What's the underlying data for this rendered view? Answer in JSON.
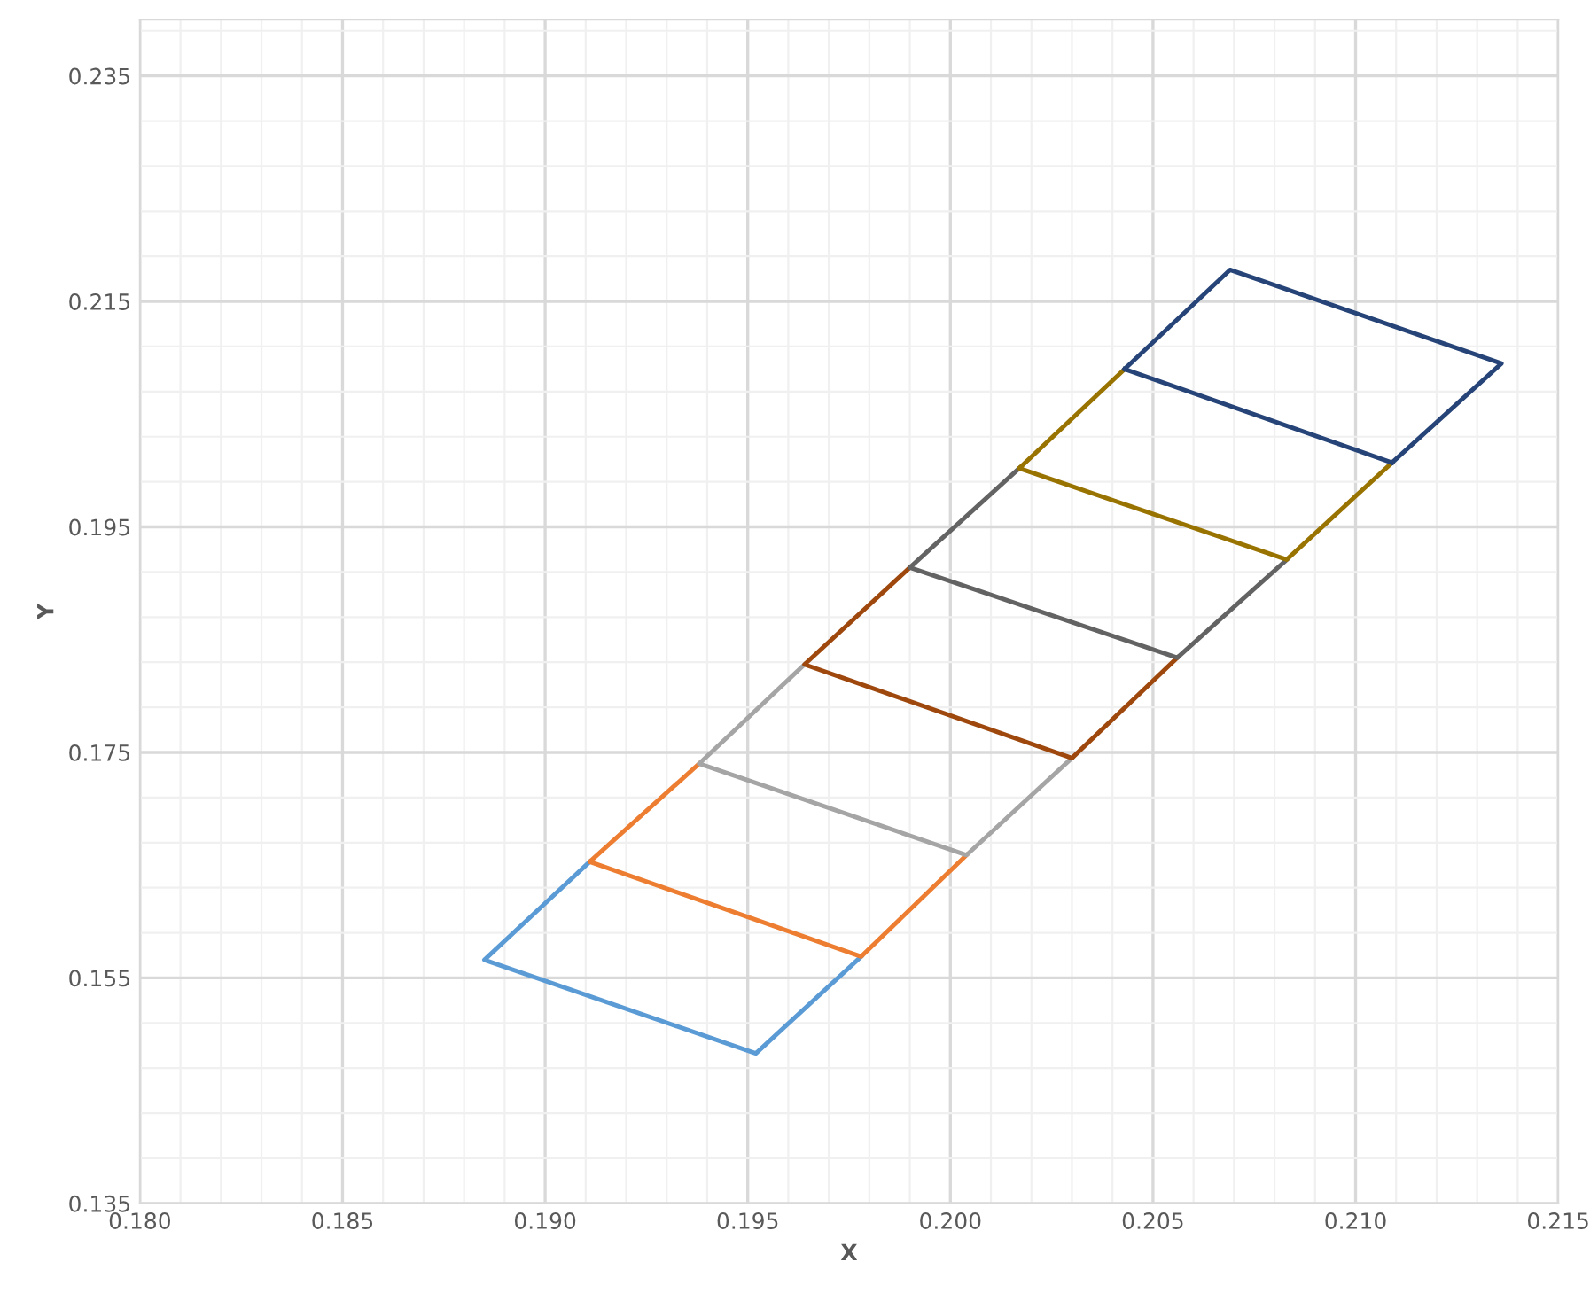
{
  "chart_data": {
    "type": "line",
    "xlabel": "X",
    "ylabel": "Y",
    "xlim": [
      0.18,
      0.215
    ],
    "ylim": [
      0.135,
      0.24
    ],
    "xticks": [
      {
        "value": 0.18,
        "label": "0.180"
      },
      {
        "value": 0.185,
        "label": "0.185"
      },
      {
        "value": 0.19,
        "label": "0.190"
      },
      {
        "value": 0.195,
        "label": "0.195"
      },
      {
        "value": 0.2,
        "label": "0.200"
      },
      {
        "value": 0.205,
        "label": "0.205"
      },
      {
        "value": 0.21,
        "label": "0.210"
      },
      {
        "value": 0.215,
        "label": "0.215"
      }
    ],
    "yticks": [
      {
        "value": 0.135,
        "label": "0.135"
      },
      {
        "value": 0.155,
        "label": "0.155"
      },
      {
        "value": 0.175,
        "label": "0.175"
      },
      {
        "value": 0.195,
        "label": "0.195"
      },
      {
        "value": 0.215,
        "label": "0.215"
      },
      {
        "value": 0.235,
        "label": "0.235"
      }
    ],
    "grid": true,
    "marker": "none",
    "line_style": "solid",
    "series": [
      {
        "color": "#5b9bd5",
        "x": [
          0.1911,
          0.1885,
          0.1952,
          0.1978
        ],
        "values": [
          0.1653,
          0.1566,
          0.1483,
          0.1569
        ]
      },
      {
        "color": "#ed7d31",
        "x": [
          0.1938,
          0.1911,
          0.1978,
          0.2004
        ],
        "values": [
          0.174,
          0.1653,
          0.1569,
          0.1659
        ]
      },
      {
        "color": "#a5a5a5",
        "x": [
          0.1964,
          0.1938,
          0.2004,
          0.203
        ],
        "values": [
          0.1828,
          0.174,
          0.1659,
          0.1745
        ]
      },
      {
        "color": "#9e480e",
        "x": [
          0.199,
          0.1964,
          0.203,
          0.2056
        ],
        "values": [
          0.1914,
          0.1828,
          0.1745,
          0.1834
        ]
      },
      {
        "color": "#636363",
        "x": [
          0.2017,
          0.199,
          0.2056,
          0.2083
        ],
        "values": [
          0.2002,
          0.1914,
          0.1834,
          0.1921
        ]
      },
      {
        "color": "#997300",
        "x": [
          0.2043,
          0.2017,
          0.2083,
          0.2109
        ],
        "values": [
          0.209,
          0.2002,
          0.1921,
          0.2007
        ]
      },
      {
        "color": "#264478",
        "x": [
          0.2043,
          0.2109
        ],
        "values": [
          0.209,
          0.2007
        ]
      },
      {
        "color": "#264478",
        "x": [
          0.2043,
          0.2069,
          0.2136,
          0.2109
        ],
        "values": [
          0.209,
          0.2178,
          0.2095,
          0.2007
        ]
      }
    ]
  }
}
